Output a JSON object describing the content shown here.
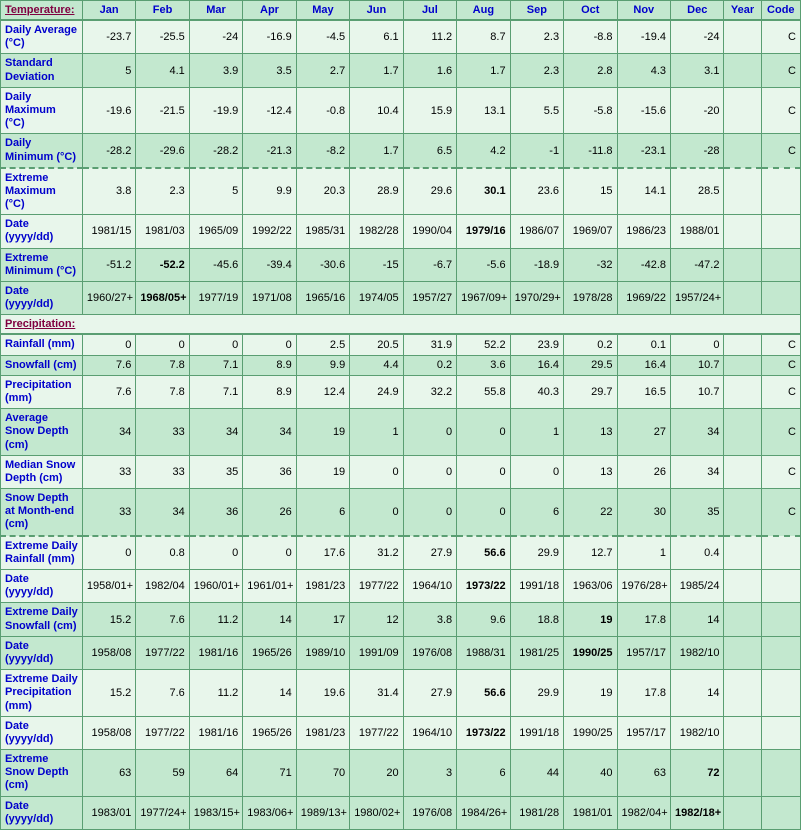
{
  "colors": {
    "border": "#5a9e72",
    "header_bg": "#c3e8cf",
    "row_light": "#e8f6eb",
    "row_dark": "#c3e8cf",
    "link_text": "#0000cc",
    "section_text": "#800040",
    "cell_text": "#000000"
  },
  "columns": [
    "Jan",
    "Feb",
    "Mar",
    "Apr",
    "May",
    "Jun",
    "Jul",
    "Aug",
    "Sep",
    "Oct",
    "Nov",
    "Dec",
    "Year",
    "Code"
  ],
  "sections": [
    {
      "title": "Temperature:",
      "shade": "temp",
      "rows": [
        {
          "label": "Daily Average (°C)",
          "shade": "light",
          "divider": false,
          "cells": [
            "-23.7",
            "-25.5",
            "-24",
            "-16.9",
            "-4.5",
            "6.1",
            "11.2",
            "8.7",
            "2.3",
            "-8.8",
            "-19.4",
            "-24",
            "",
            "C"
          ],
          "bold": []
        },
        {
          "label": "Standard Deviation",
          "shade": "dark",
          "divider": false,
          "cells": [
            "5",
            "4.1",
            "3.9",
            "3.5",
            "2.7",
            "1.7",
            "1.6",
            "1.7",
            "2.3",
            "2.8",
            "4.3",
            "3.1",
            "",
            "C"
          ],
          "bold": []
        },
        {
          "label": "Daily Maximum (°C)",
          "shade": "light",
          "divider": false,
          "cells": [
            "-19.6",
            "-21.5",
            "-19.9",
            "-12.4",
            "-0.8",
            "10.4",
            "15.9",
            "13.1",
            "5.5",
            "-5.8",
            "-15.6",
            "-20",
            "",
            "C"
          ],
          "bold": []
        },
        {
          "label": "Daily Minimum (°C)",
          "shade": "dark",
          "divider": false,
          "cells": [
            "-28.2",
            "-29.6",
            "-28.2",
            "-21.3",
            "-8.2",
            "1.7",
            "6.5",
            "4.2",
            "-1",
            "-11.8",
            "-23.1",
            "-28",
            "",
            "C"
          ],
          "bold": []
        },
        {
          "label": "Extreme Maximum (°C)",
          "shade": "light",
          "divider": true,
          "cells": [
            "3.8",
            "2.3",
            "5",
            "9.9",
            "20.3",
            "28.9",
            "29.6",
            "30.1",
            "23.6",
            "15",
            "14.1",
            "28.5",
            "",
            ""
          ],
          "bold": [
            7
          ]
        },
        {
          "label": "Date (yyyy/dd)",
          "shade": "light",
          "divider": false,
          "cells": [
            "1981/15",
            "1981/03",
            "1965/09",
            "1992/22",
            "1985/31",
            "1982/28",
            "1990/04",
            "1979/16",
            "1986/07",
            "1969/07",
            "1986/23",
            "1988/01",
            "",
            ""
          ],
          "bold": [
            7
          ]
        },
        {
          "label": "Extreme Minimum (°C)",
          "shade": "dark",
          "divider": false,
          "cells": [
            "-51.2",
            "-52.2",
            "-45.6",
            "-39.4",
            "-30.6",
            "-15",
            "-6.7",
            "-5.6",
            "-18.9",
            "-32",
            "-42.8",
            "-47.2",
            "",
            ""
          ],
          "bold": [
            1
          ]
        },
        {
          "label": "Date (yyyy/dd)",
          "shade": "dark",
          "divider": false,
          "cells": [
            "1960/27+",
            "1968/05+",
            "1977/19",
            "1971/08",
            "1965/16",
            "1974/05",
            "1957/27",
            "1967/09+",
            "1970/29+",
            "1978/28",
            "1969/22",
            "1957/24+",
            "",
            ""
          ],
          "bold": [
            1
          ]
        }
      ]
    },
    {
      "title": "Precipitation:",
      "shade": "precip",
      "rows": [
        {
          "label": "Rainfall (mm)",
          "shade": "light",
          "divider": false,
          "cells": [
            "0",
            "0",
            "0",
            "0",
            "2.5",
            "20.5",
            "31.9",
            "52.2",
            "23.9",
            "0.2",
            "0.1",
            "0",
            "",
            "C"
          ],
          "bold": []
        },
        {
          "label": "Snowfall (cm)",
          "shade": "dark",
          "divider": false,
          "cells": [
            "7.6",
            "7.8",
            "7.1",
            "8.9",
            "9.9",
            "4.4",
            "0.2",
            "3.6",
            "16.4",
            "29.5",
            "16.4",
            "10.7",
            "",
            "C"
          ],
          "bold": []
        },
        {
          "label": "Precipitation (mm)",
          "shade": "light",
          "divider": false,
          "cells": [
            "7.6",
            "7.8",
            "7.1",
            "8.9",
            "12.4",
            "24.9",
            "32.2",
            "55.8",
            "40.3",
            "29.7",
            "16.5",
            "10.7",
            "",
            "C"
          ],
          "bold": []
        },
        {
          "label": "Average Snow Depth (cm)",
          "shade": "dark",
          "divider": false,
          "cells": [
            "34",
            "33",
            "34",
            "34",
            "19",
            "1",
            "0",
            "0",
            "1",
            "13",
            "27",
            "34",
            "",
            "C"
          ],
          "bold": []
        },
        {
          "label": "Median Snow Depth (cm)",
          "shade": "light",
          "divider": false,
          "cells": [
            "33",
            "33",
            "35",
            "36",
            "19",
            "0",
            "0",
            "0",
            "0",
            "13",
            "26",
            "34",
            "",
            "C"
          ],
          "bold": []
        },
        {
          "label": "Snow Depth at Month-end (cm)",
          "shade": "dark",
          "divider": false,
          "cells": [
            "33",
            "34",
            "36",
            "26",
            "6",
            "0",
            "0",
            "0",
            "6",
            "22",
            "30",
            "35",
            "",
            "C"
          ],
          "bold": []
        },
        {
          "label": "Extreme Daily Rainfall (mm)",
          "shade": "light",
          "divider": true,
          "cells": [
            "0",
            "0.8",
            "0",
            "0",
            "17.6",
            "31.2",
            "27.9",
            "56.6",
            "29.9",
            "12.7",
            "1",
            "0.4",
            "",
            ""
          ],
          "bold": [
            7
          ]
        },
        {
          "label": "Date (yyyy/dd)",
          "shade": "light",
          "divider": false,
          "cells": [
            "1958/01+",
            "1982/04",
            "1960/01+",
            "1961/01+",
            "1981/23",
            "1977/22",
            "1964/10",
            "1973/22",
            "1991/18",
            "1963/06",
            "1976/28+",
            "1985/24",
            "",
            ""
          ],
          "bold": [
            7
          ]
        },
        {
          "label": "Extreme Daily Snowfall (cm)",
          "shade": "dark",
          "divider": false,
          "cells": [
            "15.2",
            "7.6",
            "11.2",
            "14",
            "17",
            "12",
            "3.8",
            "9.6",
            "18.8",
            "19",
            "17.8",
            "14",
            "",
            ""
          ],
          "bold": [
            9
          ]
        },
        {
          "label": "Date (yyyy/dd)",
          "shade": "dark",
          "divider": false,
          "cells": [
            "1958/08",
            "1977/22",
            "1981/16",
            "1965/26",
            "1989/10",
            "1991/09",
            "1976/08",
            "1988/31",
            "1981/25",
            "1990/25",
            "1957/17",
            "1982/10",
            "",
            ""
          ],
          "bold": [
            9
          ]
        },
        {
          "label": "Extreme Daily Precipitation (mm)",
          "shade": "light",
          "divider": false,
          "cells": [
            "15.2",
            "7.6",
            "11.2",
            "14",
            "19.6",
            "31.4",
            "27.9",
            "56.6",
            "29.9",
            "19",
            "17.8",
            "14",
            "",
            ""
          ],
          "bold": [
            7
          ]
        },
        {
          "label": "Date (yyyy/dd)",
          "shade": "light",
          "divider": false,
          "cells": [
            "1958/08",
            "1977/22",
            "1981/16",
            "1965/26",
            "1981/23",
            "1977/22",
            "1964/10",
            "1973/22",
            "1991/18",
            "1990/25",
            "1957/17",
            "1982/10",
            "",
            ""
          ],
          "bold": [
            7
          ]
        },
        {
          "label": "Extreme Snow Depth (cm)",
          "shade": "dark",
          "divider": false,
          "cells": [
            "63",
            "59",
            "64",
            "71",
            "70",
            "20",
            "3",
            "6",
            "44",
            "40",
            "63",
            "72",
            "",
            ""
          ],
          "bold": [
            11
          ]
        },
        {
          "label": "Date (yyyy/dd)",
          "shade": "dark",
          "divider": false,
          "cells": [
            "1983/01",
            "1977/24+",
            "1983/15+",
            "1983/06+",
            "1989/13+",
            "1980/02+",
            "1976/08",
            "1984/26+",
            "1981/28",
            "1981/01",
            "1982/04+",
            "1982/18+",
            "",
            ""
          ],
          "bold": [
            11
          ]
        }
      ]
    }
  ]
}
